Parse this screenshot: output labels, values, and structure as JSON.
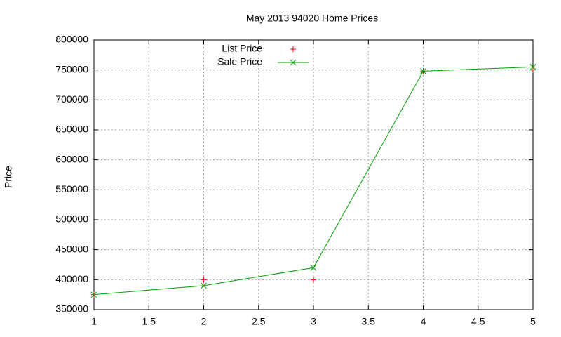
{
  "chart_data": {
    "type": "line",
    "title": "May 2013 94020 Home Prices",
    "y_label": "Price",
    "x": [
      1,
      2,
      3,
      4,
      5
    ],
    "series": [
      {
        "name": "List Price",
        "color": "#ff0000",
        "style": "points",
        "values": [
          375000,
          400000,
          400000,
          748000,
          750000
        ]
      },
      {
        "name": "Sale Price",
        "color": "#00a000",
        "style": "linespoints",
        "values": [
          375000,
          390000,
          420000,
          748000,
          755000
        ]
      }
    ],
    "xlim": [
      1,
      5
    ],
    "xticks": [
      1,
      1.5,
      2,
      2.5,
      3,
      3.5,
      4,
      4.5,
      5
    ],
    "ylim": [
      350000,
      800000
    ],
    "yticks": [
      350000,
      400000,
      450000,
      500000,
      550000,
      600000,
      650000,
      700000,
      750000,
      800000
    ],
    "grid": true,
    "legend": "top-left"
  }
}
